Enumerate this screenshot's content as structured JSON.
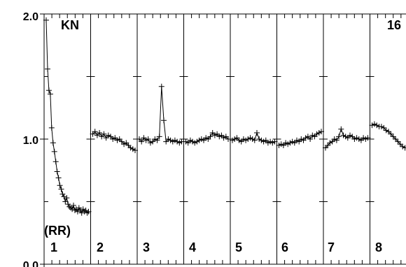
{
  "chart_data": {
    "type": "line",
    "title": "",
    "xlabel": "",
    "ylabel": "",
    "ylim": [
      0.0,
      2.0
    ],
    "y_ticks": [
      {
        "value": 0.0,
        "label": "0.0"
      },
      {
        "value": 1.0,
        "label": "1.0"
      },
      {
        "value": 2.0,
        "label": "2.0"
      }
    ],
    "corner_labels": {
      "left": "KN",
      "right": "16"
    },
    "annotation": "(RR)",
    "grid": false,
    "marker": "+",
    "line_color": "#000000",
    "panels": [
      {
        "label": "1",
        "values": [
          1.95,
          1.56,
          1.39,
          1.36,
          1.09,
          0.97,
          0.9,
          0.82,
          0.74,
          0.69,
          0.63,
          0.6,
          0.56,
          0.54,
          0.5,
          0.53,
          0.48,
          0.46,
          0.45,
          0.44,
          0.47,
          0.43,
          0.44,
          0.42,
          0.45,
          0.43,
          0.41,
          0.44,
          0.42,
          0.43,
          0.41,
          0.42
        ]
      },
      {
        "label": "2",
        "values": [
          1.04,
          1.06,
          1.03,
          1.05,
          1.02,
          1.04,
          1.01,
          1.03,
          1.02,
          1.0,
          1.01,
          0.99,
          1.0,
          0.98,
          0.96,
          0.97,
          0.95,
          0.93,
          0.92,
          0.91
        ]
      },
      {
        "label": "3",
        "values": [
          1.0,
          0.98,
          1.01,
          0.99,
          1.0,
          0.97,
          0.98,
          1.0,
          0.99,
          1.02,
          1.42,
          1.15,
          0.98,
          1.0,
          0.99,
          0.98,
          0.99,
          0.98,
          0.97,
          0.98
        ]
      },
      {
        "label": "4",
        "values": [
          0.98,
          0.97,
          0.99,
          0.98,
          0.97,
          0.98,
          0.99,
          1.0,
          0.99,
          1.01,
          1.0,
          1.02,
          1.05,
          1.03,
          1.04,
          1.02,
          1.03,
          1.01,
          1.02,
          1.0
        ]
      },
      {
        "label": "5",
        "values": [
          0.99,
          1.0,
          1.01,
          0.99,
          0.98,
          1.0,
          0.99,
          1.0,
          1.01,
          1.0,
          0.99,
          1.05,
          1.0,
          0.99,
          0.98,
          0.99,
          0.97,
          0.98,
          0.97,
          0.98
        ]
      },
      {
        "label": "6",
        "values": [
          0.95,
          0.96,
          0.95,
          0.97,
          0.96,
          0.97,
          0.98,
          0.97,
          0.99,
          0.98,
          1.0,
          0.99,
          1.01,
          1.02,
          1.0,
          1.03,
          1.02,
          1.04,
          1.05,
          1.06
        ]
      },
      {
        "label": "7",
        "values": [
          0.93,
          0.95,
          0.97,
          0.98,
          1.0,
          0.99,
          1.02,
          1.08,
          1.03,
          1.02,
          1.01,
          1.03,
          1.02,
          1.0,
          1.01,
          1.0,
          0.99,
          1.01,
          1.0,
          1.01
        ]
      },
      {
        "label": "8",
        "values": [
          1.11,
          1.12,
          1.11,
          1.1,
          1.1,
          1.09,
          1.07,
          1.06,
          1.04,
          1.02,
          1.0,
          0.98,
          0.96,
          0.94,
          0.93,
          0.92,
          0.91,
          0.92,
          0.93
        ]
      }
    ]
  }
}
